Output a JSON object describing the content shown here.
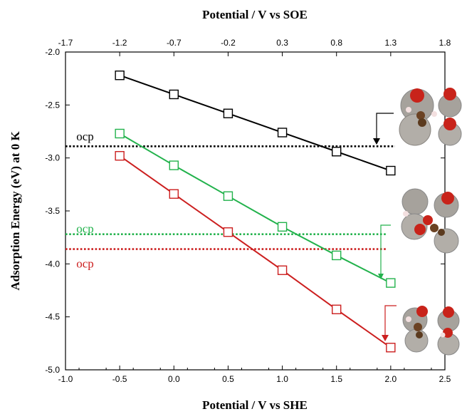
{
  "chart_data": {
    "type": "line",
    "xlabel": "Potential / V vs SHE",
    "x2label": "Potential / V vs SOE",
    "ylabel": "Adsorption Energy (eV) at 0 K",
    "xlim": [
      -1.0,
      2.5
    ],
    "ylim": [
      -5.0,
      -2.0
    ],
    "xticks": [
      "-1.0",
      "-0.5",
      "0.0",
      "0.5",
      "1.0",
      "1.5",
      "2.0",
      "2.5"
    ],
    "x2ticks": [
      "-1.7",
      "-1.2",
      "-0.7",
      "-0.2",
      "0.3",
      "0.8",
      "1.3",
      "1.8"
    ],
    "yticks": [
      "-2.0",
      "-2.5",
      "-3.0",
      "-3.5",
      "-4.0",
      "-4.5",
      "-5.0"
    ],
    "series": [
      {
        "color": "#000000",
        "x": [
          -0.5,
          0.0,
          0.5,
          1.0,
          1.5,
          2.0
        ],
        "y": [
          -2.22,
          -2.4,
          -2.58,
          -2.76,
          -2.94,
          -3.12
        ]
      },
      {
        "color": "#22b24c",
        "x": [
          -0.5,
          0.0,
          0.5,
          1.0,
          1.5,
          2.0
        ],
        "y": [
          -2.77,
          -3.07,
          -3.36,
          -3.65,
          -3.92,
          -4.18
        ]
      },
      {
        "color": "#cc1f1f",
        "x": [
          -0.5,
          0.0,
          0.5,
          1.0,
          1.5,
          2.0
        ],
        "y": [
          -2.98,
          -3.34,
          -3.7,
          -4.06,
          -4.43,
          -4.79
        ]
      }
    ],
    "ocp_lines": [
      {
        "label": "ocp",
        "y": -2.89,
        "color": "#000000"
      },
      {
        "label": "ocp",
        "y": -3.72,
        "color": "#22b24c"
      },
      {
        "label": "ocp",
        "y": -3.86,
        "color": "#cc1f1f"
      }
    ]
  }
}
